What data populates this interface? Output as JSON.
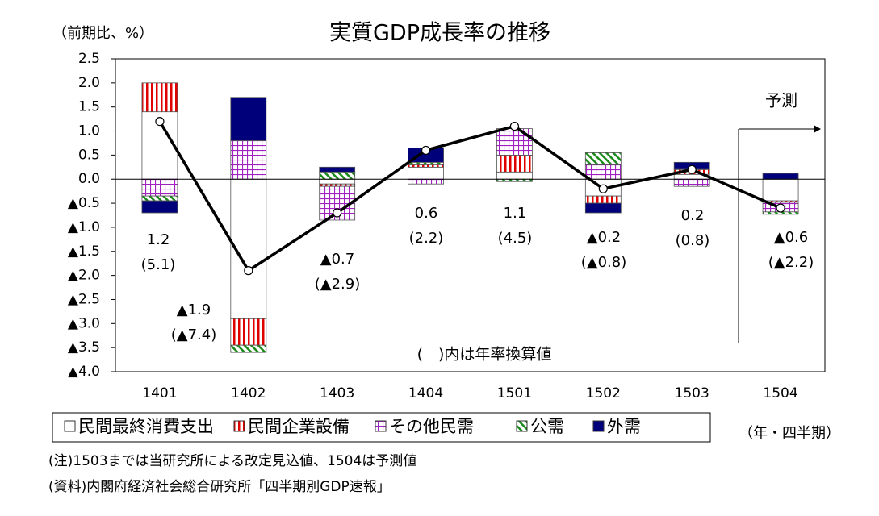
{
  "chart_data": {
    "type": "stacked-bar-line",
    "title": "実質GDP成長率の推移",
    "y_axis_label": "（前期比、%）",
    "x_axis_label": "（年・四半期）",
    "categories": [
      "1401",
      "1402",
      "1403",
      "1404",
      "1501",
      "1502",
      "1503",
      "1504"
    ],
    "series": [
      {
        "name": "民間最終消費支出",
        "color": "#000000",
        "pattern": "none",
        "values": [
          1.4,
          -2.9,
          -0.1,
          0.25,
          0.15,
          -0.35,
          0.1,
          -0.45
        ]
      },
      {
        "name": "民間企業設備",
        "color": "#e00000",
        "pattern": "vertical-stripes",
        "values": [
          0.6,
          -0.55,
          -0.05,
          0.05,
          0.35,
          -0.15,
          0.1,
          -0.03
        ]
      },
      {
        "name": "その他民需",
        "color": "#a020c0",
        "pattern": "grid",
        "values": [
          -0.35,
          0.8,
          -0.7,
          -0.1,
          0.55,
          0.3,
          -0.15,
          -0.2
        ]
      },
      {
        "name": "公需",
        "color": "#1a8a1a",
        "pattern": "diagonal",
        "values": [
          -0.1,
          -0.15,
          0.15,
          0.05,
          -0.05,
          0.25,
          0.02,
          -0.05
        ]
      },
      {
        "name": "外需",
        "color": "#00007a",
        "pattern": "solid",
        "values": [
          -0.25,
          0.9,
          0.1,
          0.3,
          0.0,
          -0.2,
          0.13,
          0.12
        ]
      }
    ],
    "growth": {
      "color": "#000000",
      "values": [
        1.2,
        -1.9,
        -0.7,
        0.6,
        1.1,
        -0.2,
        0.2,
        -0.6
      ],
      "value_labels": [
        "1.2",
        "▲1.9",
        "▲0.7",
        "0.6",
        "1.1",
        "▲0.2",
        "0.2",
        "▲0.6"
      ]
    },
    "annualized": {
      "values": [
        5.1,
        -7.4,
        -2.9,
        2.2,
        4.5,
        -0.8,
        0.8,
        -2.2
      ],
      "value_labels": [
        "(5.1)",
        "(▲7.4)",
        "(▲2.9)",
        "(2.2)",
        "(4.5)",
        "(▲0.8)",
        "(0.8)",
        "(▲2.2)"
      ]
    },
    "annotations": [
      "予測",
      "(　)内は年率換算値"
    ],
    "notes": [
      "(注)1503までは当研究所による改定見込値、1504は予測値",
      "(資料)内閣府経済社会総合研究所「四半期別GDP速報」"
    ],
    "ylim": [
      -4,
      2.5
    ],
    "yticks": [
      {
        "value": -4,
        "label": "▲4.0"
      },
      {
        "value": -3.5,
        "label": "▲3.5"
      },
      {
        "value": -3,
        "label": "▲3.0"
      },
      {
        "value": -2.5,
        "label": "▲2.5"
      },
      {
        "value": -2,
        "label": "▲2.0"
      },
      {
        "value": -1.5,
        "label": "▲1.5"
      },
      {
        "value": -1,
        "label": "▲1.0"
      },
      {
        "value": -0.5,
        "label": "▲0.5"
      },
      {
        "value": 0,
        "label": "0.0"
      },
      0.5,
      {
        "value": 1,
        "label": "1.0"
      },
      1.5,
      {
        "value": 2,
        "label": "2.0"
      },
      2.5
    ]
  }
}
